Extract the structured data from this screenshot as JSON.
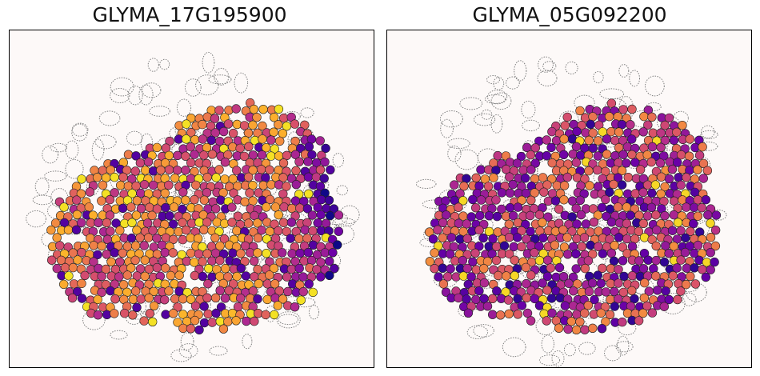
{
  "chart_data": [
    {
      "type": "scatter",
      "title": "GLYMA_17G195900",
      "xlabel": "",
      "ylabel": "",
      "grid": false,
      "colormap": "plasma",
      "background_color": "#fdf9f8",
      "cell_outline_color": "#808080",
      "spot_edge_color": "#222222",
      "spot_seed": 1795,
      "value_profile": "right-edge spots lower expression (dark purple); center-left mostly high (orange)"
    },
    {
      "type": "scatter",
      "title": "GLYMA_05G092200",
      "xlabel": "",
      "ylabel": "",
      "grid": false,
      "colormap": "plasma",
      "background_color": "#fdf9f8",
      "cell_outline_color": "#808080",
      "spot_edge_color": "#222222",
      "spot_seed": 592,
      "value_profile": "mixed expression, more magenta/purple overall"
    }
  ]
}
